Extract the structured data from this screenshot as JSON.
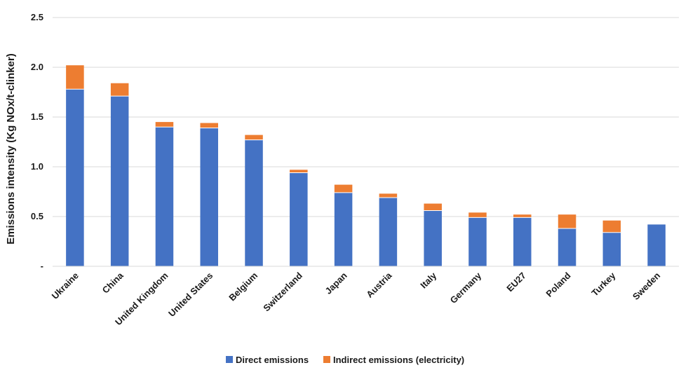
{
  "chart_data": {
    "type": "bar",
    "stacked": true,
    "title": "",
    "xlabel": "",
    "ylabel": "Emissions intensity (Kg NOx/t-clinker)",
    "ylim": [
      0,
      2.5
    ],
    "yticks": [
      {
        "value": 0,
        "label": "-"
      },
      {
        "value": 0.5,
        "label": "0.5"
      },
      {
        "value": 1.0,
        "label": "1.0"
      },
      {
        "value": 1.5,
        "label": "1.5"
      },
      {
        "value": 2.0,
        "label": "2.0"
      },
      {
        "value": 2.5,
        "label": "2.5"
      }
    ],
    "grid": true,
    "legend_position": "bottom",
    "categories": [
      "Ukraine",
      "China",
      "United Kingdom",
      "United States",
      "Belgium",
      "Switzerland",
      "Japan",
      "Austria",
      "Italy",
      "Germany",
      "EU27",
      "Poland",
      "Turkey",
      "Sweden"
    ],
    "series": [
      {
        "name": "Direct emissions",
        "color": "#4472c4",
        "values": [
          1.78,
          1.71,
          1.4,
          1.39,
          1.27,
          0.94,
          0.74,
          0.69,
          0.56,
          0.49,
          0.49,
          0.38,
          0.34,
          0.42
        ]
      },
      {
        "name": "Indirect emissions (electricity)",
        "color": "#ed7d31",
        "values": [
          0.24,
          0.13,
          0.05,
          0.05,
          0.05,
          0.03,
          0.08,
          0.04,
          0.07,
          0.05,
          0.03,
          0.14,
          0.12,
          0.0
        ]
      }
    ]
  }
}
